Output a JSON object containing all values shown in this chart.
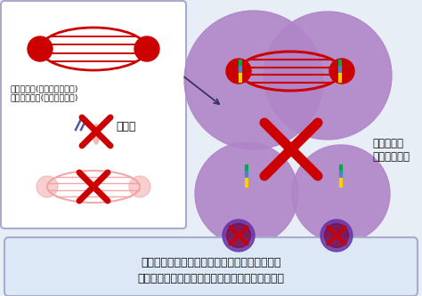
{
  "bg_color": "#e8eef5",
  "box_bg": "#ffffff",
  "box_border": "#aaaacc",
  "bottom_box_bg": "#dce8f5",
  "bottom_box_border": "#aaaacc",
  "cell_color": "#b085c8",
  "red": "#cc0000",
  "pink_light": "#f0a0a0",
  "pink_arrow": "#f5b8b8",
  "green": "#00aa44",
  "blue_bar": "#4488cc",
  "yellow": "#ffcc00",
  "purple_dark": "#7744aa",
  "text_color": "#111111",
  "label_top": "タキソール(バクリタキセル)\nタキソテール(ドセタキセル)",
  "label_right": "細胞分裂が\n完了できない",
  "label_depolymerize": "脱重合",
  "bottom_text_1": "タキソールとタキソテールは微小管の脱重合を",
  "bottom_text_2": "阻害することで、がん細胞の細胞分裂を抑制する"
}
